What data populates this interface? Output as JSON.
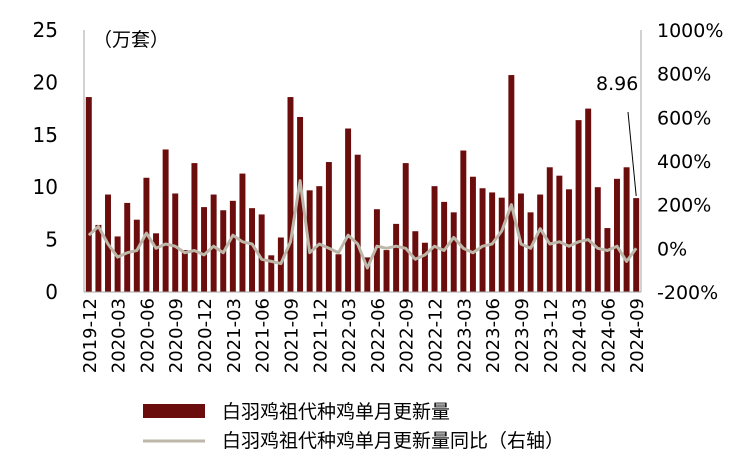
{
  "chart_data": {
    "type": "bar",
    "unit_label": "（万套）",
    "callout": "8.96",
    "left_axis": {
      "ylim": [
        0,
        25
      ],
      "ticks": [
        "0",
        "5",
        "10",
        "15",
        "20",
        "25"
      ]
    },
    "right_axis": {
      "ylim": [
        -200,
        1000
      ],
      "ticks": [
        "-200%",
        "0%",
        "200%",
        "400%",
        "600%",
        "800%",
        "1000%"
      ]
    },
    "x_tick_labels": [
      "2019-12",
      "2020-03",
      "2020-06",
      "2020-09",
      "2020-12",
      "2021-03",
      "2021-06",
      "2021-09",
      "2021-12",
      "2022-03",
      "2022-06",
      "2022-09",
      "2022-12",
      "2023-03",
      "2023-06",
      "2023-09",
      "2023-12",
      "2024-03",
      "2024-06",
      "2024-09"
    ],
    "categories": [
      "2019-12",
      "2020-01",
      "2020-02",
      "2020-03",
      "2020-04",
      "2020-05",
      "2020-06",
      "2020-07",
      "2020-08",
      "2020-09",
      "2020-10",
      "2020-11",
      "2020-12",
      "2021-01",
      "2021-02",
      "2021-03",
      "2021-04",
      "2021-05",
      "2021-06",
      "2021-07",
      "2021-08",
      "2021-09",
      "2021-10",
      "2021-11",
      "2021-12",
      "2022-01",
      "2022-02",
      "2022-03",
      "2022-04",
      "2022-05",
      "2022-06",
      "2022-07",
      "2022-08",
      "2022-09",
      "2022-10",
      "2022-11",
      "2022-12",
      "2023-01",
      "2023-02",
      "2023-03",
      "2023-04",
      "2023-05",
      "2023-06",
      "2023-07",
      "2023-08",
      "2023-09",
      "2023-10",
      "2023-11",
      "2023-12",
      "2024-01",
      "2024-02",
      "2024-03",
      "2024-04",
      "2024-05",
      "2024-06",
      "2024-07",
      "2024-08",
      "2024-09"
    ],
    "series": [
      {
        "name": "白羽鸡祖代种鸡单月更新量",
        "axis": "left",
        "color": "#6b0d0d",
        "values": [
          18.6,
          6.4,
          9.3,
          5.3,
          8.5,
          6.9,
          10.9,
          5.6,
          13.6,
          9.4,
          4.0,
          12.3,
          8.1,
          9.3,
          7.8,
          8.7,
          11.3,
          8.0,
          7.4,
          3.5,
          5.2,
          18.6,
          16.7,
          9.7,
          10.1,
          12.4,
          3.6,
          15.6,
          13.1,
          3.3,
          7.9,
          4.0,
          6.5,
          12.3,
          5.8,
          4.7,
          10.1,
          8.6,
          7.6,
          13.5,
          11.0,
          9.9,
          9.5,
          9.0,
          20.7,
          9.4,
          7.6,
          9.3,
          11.9,
          11.1,
          9.8,
          16.4,
          17.5,
          10.0,
          6.1,
          10.8,
          11.9,
          8.96
        ]
      },
      {
        "name": "白羽鸡祖代种鸡单月更新量同比（右轴）",
        "axis": "right",
        "color": "#bdb7a9",
        "values": [
          60,
          100,
          20,
          -40,
          -20,
          -10,
          70,
          0,
          20,
          10,
          -20,
          -10,
          -30,
          10,
          -20,
          60,
          30,
          20,
          -50,
          -60,
          -70,
          30,
          310,
          -20,
          20,
          0,
          -20,
          60,
          20,
          -90,
          10,
          0,
          10,
          0,
          -50,
          -30,
          10,
          -10,
          50,
          0,
          -20,
          10,
          20,
          80,
          200,
          20,
          0,
          90,
          20,
          30,
          10,
          30,
          40,
          0,
          -10,
          10,
          -60,
          0
        ]
      }
    ]
  }
}
